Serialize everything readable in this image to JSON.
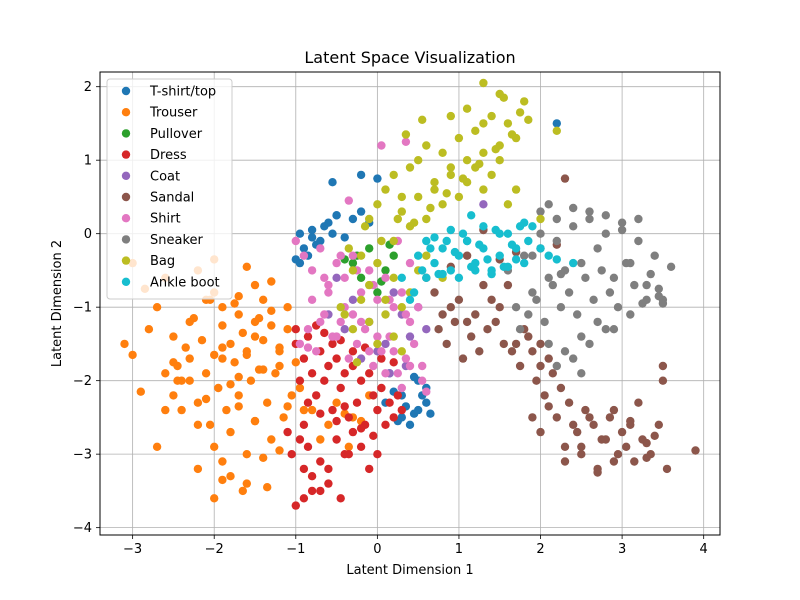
{
  "chart_data": {
    "type": "scatter",
    "title": "Latent Space Visualization",
    "xlabel": "Latent Dimension 1",
    "ylabel": "Latent Dimension 2",
    "xlim": [
      -3.4,
      4.2
    ],
    "ylim": [
      -4.1,
      2.2
    ],
    "xticks": [
      -3,
      -2,
      -1,
      0,
      1,
      2,
      3,
      4
    ],
    "yticks": [
      -4,
      -3,
      -2,
      -1,
      0,
      1,
      2
    ],
    "tick_labels_x": [
      "−3",
      "−2",
      "−1",
      "0",
      "1",
      "2",
      "3",
      "4"
    ],
    "tick_labels_y": [
      "−4",
      "−3",
      "−2",
      "−1",
      "0",
      "1",
      "2"
    ],
    "grid": true,
    "legend_position": "top-left",
    "series": [
      {
        "name": "T-shirt/top",
        "color": "#1f77b4",
        "x": [
          -0.95,
          -0.8,
          -0.9,
          -0.7,
          -0.6,
          -1.0,
          -0.85,
          -0.5,
          -0.65,
          -0.4,
          -0.55,
          -0.75,
          -0.3,
          -0.2,
          -0.1,
          0.1,
          0.3,
          0.45,
          0.5,
          0.6,
          0.55,
          0.4,
          0.3,
          0.2,
          0.65,
          0.5,
          -0.55,
          -0.5,
          -0.2,
          2.2,
          0.15,
          0.35,
          0.25,
          0.6,
          0.45,
          -0.95,
          -0.8,
          0.0
        ],
        "y": [
          0.0,
          0.05,
          -0.2,
          -0.1,
          0.15,
          -0.35,
          -0.3,
          0.25,
          0.1,
          -0.05,
          0.0,
          -0.15,
          0.2,
          0.3,
          0.15,
          -2.3,
          -2.2,
          -2.45,
          -2.4,
          -2.3,
          -2.2,
          -2.6,
          -2.5,
          -2.15,
          -2.45,
          -2.0,
          0.7,
          0.25,
          0.8,
          1.5,
          -1.9,
          -2.35,
          -2.55,
          -2.1,
          -1.95,
          -0.4,
          -0.05,
          0.75
        ]
      },
      {
        "name": "Trouser",
        "color": "#ff7f0e",
        "x": [
          -3.1,
          -3.0,
          -2.9,
          -2.8,
          -2.7,
          -2.6,
          -2.5,
          -2.45,
          -2.4,
          -2.35,
          -2.3,
          -2.25,
          -2.2,
          -2.15,
          -2.1,
          -2.05,
          -2.0,
          -1.95,
          -1.9,
          -1.85,
          -1.8,
          -1.75,
          -1.7,
          -1.65,
          -1.6,
          -1.55,
          -1.5,
          -1.45,
          -1.4,
          -1.35,
          -1.3,
          -1.25,
          -1.2,
          -1.15,
          -1.1,
          -1.05,
          -1.0,
          -0.95,
          -0.9,
          -2.6,
          -2.5,
          -2.3,
          -2.1,
          -2.0,
          -1.9,
          -1.8,
          -1.7,
          -1.6,
          -1.5,
          -1.4,
          -1.3,
          -1.2,
          -1.1,
          -2.2,
          -2.0,
          -1.8,
          -1.6,
          -1.4,
          -1.2,
          -2.4,
          -2.2,
          -1.9,
          -1.7,
          -1.5,
          -1.3,
          -1.1,
          -2.0,
          -1.8,
          -1.6,
          -1.4,
          -1.9,
          -1.7,
          -1.5,
          -2.5,
          -2.3,
          -2.1,
          -1.9,
          -1.7,
          -1.5,
          -1.3,
          -1.2,
          -2.05,
          -1.75,
          -1.45,
          -0.8,
          -0.6,
          -0.5,
          -0.3,
          -0.2,
          -0.1,
          -0.7,
          -0.4,
          -0.35,
          -3.0,
          -2.85,
          -2.2,
          -2.0,
          -1.6,
          -1.9,
          -2.7,
          -2.6,
          -2.45,
          -1.65,
          -1.35
        ],
        "y": [
          -1.5,
          -1.65,
          -2.15,
          -1.3,
          -1.0,
          -0.6,
          -1.4,
          -1.8,
          -2.0,
          -1.55,
          -1.7,
          -1.15,
          -2.3,
          -1.45,
          -1.9,
          -2.6,
          -1.65,
          -2.1,
          -1.25,
          -2.4,
          -1.5,
          -1.75,
          -2.2,
          -1.35,
          -1.6,
          -2.0,
          -1.2,
          -1.85,
          -1.45,
          -2.3,
          -1.05,
          -1.9,
          -1.6,
          -2.5,
          -1.3,
          -2.2,
          -1.75,
          -2.1,
          -2.4,
          -1.9,
          -2.2,
          -1.2,
          -0.9,
          -2.9,
          -3.1,
          -2.7,
          -1.1,
          -3.0,
          -2.55,
          -0.9,
          -2.8,
          -1.55,
          -2.35,
          -3.2,
          -3.6,
          -3.3,
          -3.4,
          -3.05,
          -2.95,
          -2.4,
          -2.6,
          -1.0,
          -0.85,
          -0.7,
          -0.65,
          -1.0,
          -0.8,
          -2.05,
          -1.65,
          -1.85,
          -1.55,
          -2.35,
          -2.55,
          -1.75,
          -2.0,
          -2.25,
          -1.7,
          -1.95,
          -1.4,
          -1.25,
          -1.8,
          -0.9,
          -0.95,
          -1.15,
          -2.4,
          -2.6,
          -2.3,
          -2.5,
          -2.55,
          -2.2,
          -2.8,
          -2.45,
          -2.9,
          -0.4,
          -0.75,
          -0.5,
          -0.35,
          -0.45,
          -3.35,
          -2.9,
          -2.4,
          -2.0,
          -3.5,
          -3.45
        ]
      },
      {
        "name": "Pullover",
        "color": "#2ca02c",
        "x": [
          -0.3,
          -0.1,
          0.1,
          0.2,
          -0.2,
          0.0,
          0.15,
          -0.25,
          0.05,
          -0.4
        ],
        "y": [
          -0.4,
          -0.2,
          -0.5,
          -0.3,
          -0.6,
          -0.8,
          -0.15,
          -0.3,
          -0.65,
          -0.35
        ]
      },
      {
        "name": "Dress",
        "color": "#d62728",
        "x": [
          -1.0,
          -0.95,
          -0.9,
          -0.85,
          -0.8,
          -0.75,
          -0.7,
          -0.65,
          -0.6,
          -0.55,
          -0.5,
          -0.45,
          -0.4,
          -0.35,
          -0.3,
          -0.25,
          -0.2,
          -0.15,
          -0.1,
          -0.05,
          0.0,
          0.05,
          0.1,
          0.15,
          0.2,
          0.25,
          0.3,
          -1.1,
          -1.05,
          -0.95,
          -0.9,
          -0.85,
          -0.8,
          -0.7,
          -0.6,
          -0.5,
          -0.4,
          -0.3,
          -0.2,
          -0.1,
          0.0,
          -1.0,
          -0.9,
          -0.8,
          -0.7,
          -0.6,
          -0.45,
          -0.35,
          -1.0,
          -0.85,
          -0.75,
          -0.65,
          -0.55,
          -0.45,
          -0.3,
          -0.15,
          0.05,
          0.2,
          -0.9,
          -0.7,
          -0.5,
          -0.4,
          -0.2,
          -0.05
        ],
        "y": [
          -1.5,
          -2.0,
          -1.7,
          -2.3,
          -1.9,
          -2.2,
          -1.6,
          -2.0,
          -1.8,
          -2.4,
          -1.7,
          -2.1,
          -1.9,
          -2.5,
          -1.8,
          -2.3,
          -2.0,
          -2.6,
          -1.9,
          -2.2,
          -2.4,
          -2.1,
          -2.6,
          -2.3,
          -2.5,
          -2.2,
          -2.4,
          -2.7,
          -3.0,
          -2.8,
          -3.2,
          -2.9,
          -3.5,
          -3.1,
          -3.4,
          -2.8,
          -3.0,
          -2.7,
          -2.9,
          -3.2,
          -3.0,
          -3.7,
          -3.6,
          -3.3,
          -3.5,
          -3.2,
          -3.6,
          -3.0,
          -1.3,
          -1.4,
          -1.25,
          -1.35,
          -1.5,
          -1.45,
          -1.6,
          -1.55,
          -1.7,
          -1.75,
          -2.6,
          -2.45,
          -2.55,
          -2.35,
          -2.65,
          -2.75
        ]
      },
      {
        "name": "Coat",
        "color": "#9467bd",
        "x": [
          -0.6,
          -0.4,
          -0.3,
          -0.1,
          0.1,
          0.3,
          0.4,
          0.5,
          0.6,
          0.2,
          0.0,
          -0.2,
          -0.5,
          0.35,
          0.15,
          1.3
        ],
        "y": [
          -1.1,
          -1.3,
          -0.9,
          -1.2,
          -1.5,
          -1.1,
          -1.4,
          -1.0,
          -1.3,
          -0.8,
          -1.6,
          -1.7,
          -0.6,
          -1.8,
          -1.9,
          0.4
        ]
      },
      {
        "name": "Sandal",
        "color": "#8c564b",
        "x": [
          0.6,
          0.7,
          0.8,
          0.9,
          1.0,
          1.1,
          1.2,
          1.3,
          1.4,
          1.5,
          1.6,
          1.7,
          1.8,
          1.9,
          2.0,
          0.75,
          0.85,
          0.95,
          1.05,
          1.15,
          1.25,
          1.35,
          1.45,
          1.55,
          1.65,
          1.75,
          1.85,
          1.95,
          2.05,
          2.15,
          2.25,
          2.35,
          2.45,
          2.55,
          2.65,
          2.75,
          2.85,
          2.95,
          3.05,
          3.15,
          3.25,
          3.35,
          3.45,
          3.55,
          3.9,
          2.0,
          2.1,
          2.2,
          2.3,
          2.4,
          2.5,
          2.6,
          2.7,
          2.8,
          2.9,
          3.0,
          3.1,
          3.2,
          3.3,
          3.4,
          3.5,
          1.9,
          2.0,
          2.1,
          2.3,
          2.5,
          2.7,
          2.9,
          3.1,
          3.3,
          3.5,
          2.3,
          1.1,
          1.3,
          1.5,
          0.9,
          1.7,
          2.2
        ],
        "y": [
          -0.6,
          -0.8,
          -1.1,
          -1.0,
          -0.9,
          -1.2,
          -1.1,
          -0.7,
          -0.9,
          -1.0,
          -0.7,
          -1.5,
          -1.3,
          -1.6,
          -1.8,
          -1.3,
          -1.5,
          -1.2,
          -1.7,
          -1.4,
          -1.6,
          -1.3,
          -1.2,
          -1.5,
          -1.6,
          -1.8,
          -1.4,
          -2.0,
          -2.2,
          -1.9,
          -2.1,
          -2.3,
          -2.7,
          -2.4,
          -2.6,
          -2.8,
          -2.5,
          -3.0,
          -2.9,
          -3.1,
          -2.8,
          -3.0,
          -2.6,
          -3.2,
          -2.95,
          -1.5,
          -1.7,
          -2.5,
          -2.9,
          -2.6,
          -3.0,
          -2.5,
          -3.2,
          -2.8,
          -3.1,
          -2.7,
          -2.6,
          -2.3,
          -3.05,
          -2.75,
          -2.0,
          -2.5,
          -2.7,
          -2.35,
          -3.1,
          -2.9,
          -3.25,
          -2.4,
          -2.55,
          -2.85,
          -1.8,
          0.75,
          -0.3,
          0.05,
          -0.35,
          -0.45,
          -0.25,
          -0.15
        ]
      },
      {
        "name": "Shirt",
        "color": "#e377c2",
        "x": [
          -1.0,
          -0.9,
          -0.8,
          -0.7,
          -0.6,
          -0.5,
          -0.4,
          -0.3,
          -0.2,
          -0.1,
          0.0,
          0.1,
          0.2,
          0.3,
          0.4,
          0.5,
          -0.95,
          -0.85,
          -0.75,
          -0.65,
          -0.55,
          -0.45,
          -0.35,
          -0.25,
          -0.15,
          -0.05,
          0.05,
          0.15,
          0.25,
          0.35,
          0.45,
          0.55,
          -0.8,
          -0.6,
          -0.4,
          -0.2,
          0.0,
          0.2,
          0.4,
          -0.7,
          -0.5,
          -0.3,
          -0.1,
          0.1,
          0.3,
          -0.65,
          -0.45,
          -0.25,
          -0.05,
          0.15,
          0.35,
          0.05,
          0.35,
          -0.35,
          0.55,
          0.6,
          -0.85,
          0.25,
          0.4
        ],
        "y": [
          -0.1,
          -0.3,
          -0.5,
          -0.2,
          -0.7,
          -0.4,
          -0.6,
          -0.3,
          -0.8,
          -0.5,
          -0.9,
          -0.6,
          -1.0,
          -0.8,
          -1.2,
          -1.0,
          -1.5,
          -1.3,
          -1.6,
          -1.1,
          -1.4,
          -1.2,
          -1.7,
          -1.5,
          -1.3,
          -1.8,
          -1.6,
          -1.4,
          -1.9,
          -1.7,
          -1.5,
          -1.8,
          -0.9,
          -0.8,
          -1.0,
          -1.2,
          -1.4,
          -1.6,
          -1.8,
          -1.2,
          -1.4,
          -1.1,
          -1.6,
          -1.9,
          -2.1,
          -0.6,
          -0.3,
          -0.5,
          -0.7,
          -0.9,
          -1.1,
          1.2,
          1.25,
          0.45,
          -2.0,
          -2.15,
          -1.55,
          -0.1,
          -0.4
        ]
      },
      {
        "name": "Sneaker",
        "color": "#7f7f7f",
        "x": [
          1.6,
          1.7,
          1.8,
          1.9,
          2.0,
          2.1,
          2.2,
          2.3,
          2.4,
          2.5,
          2.6,
          2.7,
          2.8,
          2.9,
          3.0,
          3.1,
          3.2,
          3.3,
          3.4,
          3.5,
          3.6,
          1.75,
          1.85,
          1.95,
          2.05,
          2.15,
          2.25,
          2.35,
          2.45,
          2.55,
          2.65,
          2.75,
          2.85,
          2.95,
          3.05,
          3.15,
          3.25,
          3.35,
          3.45,
          2.0,
          2.2,
          2.4,
          2.6,
          2.8,
          3.0,
          3.2,
          2.1,
          2.3,
          2.5,
          2.7,
          2.9,
          3.1,
          3.3,
          2.2,
          2.4,
          2.6,
          2.8,
          1.9,
          2.1,
          3.5,
          3.45,
          2.0,
          2.25,
          2.5
        ],
        "y": [
          -0.5,
          -1.0,
          -0.3,
          -0.8,
          -0.2,
          -0.6,
          -0.1,
          -0.5,
          0.1,
          -0.4,
          0.2,
          -0.2,
          0.0,
          -0.6,
          0.15,
          -0.4,
          -0.1,
          -0.7,
          -0.3,
          -0.9,
          -0.45,
          -1.3,
          -1.1,
          -0.9,
          -1.2,
          -0.7,
          -1.0,
          -0.8,
          -1.1,
          -0.6,
          -0.9,
          -0.5,
          -0.8,
          -1.0,
          -0.4,
          -0.7,
          -0.95,
          -0.55,
          -0.85,
          0.3,
          0.2,
          0.35,
          0.3,
          0.25,
          0.05,
          0.2,
          -1.5,
          -1.6,
          -1.4,
          -1.2,
          -1.3,
          -1.1,
          -0.9,
          -1.8,
          -1.7,
          -1.5,
          -1.3,
          -0.3,
          0.4,
          -0.95,
          -0.75,
          0.0,
          -0.55,
          -1.9
        ]
      },
      {
        "name": "Bag",
        "color": "#bcbd22",
        "x": [
          -0.1,
          0.0,
          0.1,
          0.2,
          0.3,
          0.4,
          0.5,
          0.6,
          0.7,
          0.8,
          0.9,
          1.0,
          1.1,
          1.2,
          1.3,
          1.4,
          1.5,
          1.6,
          1.7,
          1.8,
          0.2,
          0.3,
          0.4,
          0.5,
          0.6,
          0.7,
          0.8,
          0.9,
          1.0,
          1.1,
          1.2,
          1.3,
          1.4,
          1.5,
          1.6,
          1.7,
          -0.3,
          -0.2,
          -0.1,
          0.0,
          0.1,
          0.2,
          0.3,
          0.4,
          0.5,
          -0.4,
          -0.3,
          -0.2,
          -0.1,
          0.0,
          0.1,
          0.2,
          0.3,
          -0.35,
          -0.15,
          0.05,
          0.25,
          0.45,
          0.65,
          0.85,
          1.05,
          1.25,
          1.45,
          1.65,
          1.85,
          0.9,
          1.1,
          1.3,
          1.5,
          0.35,
          0.55,
          2.0,
          2.2,
          1.3,
          1.55,
          1.75,
          -0.45,
          -0.25,
          0.6,
          0.8
        ],
        "y": [
          0.2,
          0.4,
          0.6,
          0.8,
          0.5,
          0.9,
          1.0,
          1.2,
          0.7,
          1.1,
          0.9,
          1.3,
          1.0,
          1.4,
          1.1,
          1.6,
          1.2,
          1.5,
          1.3,
          1.8,
          -0.1,
          0.3,
          0.1,
          0.5,
          0.2,
          0.6,
          0.4,
          0.8,
          0.5,
          0.7,
          0.9,
          0.6,
          0.8,
          1.0,
          0.4,
          0.6,
          -0.5,
          -0.3,
          -0.7,
          -0.4,
          -0.9,
          -0.6,
          -1.0,
          -0.8,
          -0.5,
          -1.1,
          -1.3,
          -0.9,
          -1.2,
          -1.5,
          -1.1,
          -1.4,
          -1.6,
          -0.2,
          0.1,
          -0.1,
          0.2,
          0.15,
          0.35,
          0.55,
          0.75,
          0.95,
          1.15,
          1.35,
          1.55,
          1.6,
          1.7,
          1.5,
          1.9,
          1.35,
          1.55,
          0.2,
          1.4,
          2.05,
          1.85,
          1.65,
          -1.0,
          -1.75,
          -0.3,
          -0.6
        ]
      },
      {
        "name": "Ankle boot",
        "color": "#17becf",
        "x": [
          0.5,
          0.6,
          0.7,
          0.8,
          0.9,
          1.0,
          1.1,
          1.2,
          1.3,
          1.4,
          1.5,
          1.6,
          1.7,
          1.8,
          1.9,
          2.0,
          0.55,
          0.65,
          0.75,
          0.85,
          0.95,
          1.05,
          1.15,
          1.25,
          1.35,
          1.45,
          1.55,
          1.65,
          1.75,
          1.85,
          0.6,
          0.8,
          1.0,
          1.2,
          1.4,
          1.6,
          1.8,
          2.1,
          2.2,
          0.7,
          0.9,
          1.1,
          1.3,
          1.5,
          1.7,
          0.3,
          0.4,
          2.4,
          1.15,
          0.45
        ],
        "y": [
          -0.3,
          -0.1,
          -0.4,
          -0.2,
          -0.5,
          -0.3,
          -0.1,
          -0.4,
          -0.2,
          -0.5,
          -0.3,
          0.0,
          -0.2,
          -0.4,
          0.1,
          -0.2,
          -0.5,
          -0.2,
          -0.55,
          -0.1,
          -0.25,
          0.0,
          -0.45,
          -0.15,
          -0.35,
          0.05,
          -0.45,
          -0.15,
          0.1,
          -0.1,
          -0.6,
          -0.55,
          -0.6,
          -0.5,
          -0.55,
          -0.45,
          0.15,
          -0.3,
          -0.35,
          -0.05,
          0.05,
          -0.1,
          0.1,
          0.0,
          -0.35,
          -0.6,
          -0.9,
          -0.4,
          0.25,
          -0.8
        ]
      }
    ]
  }
}
